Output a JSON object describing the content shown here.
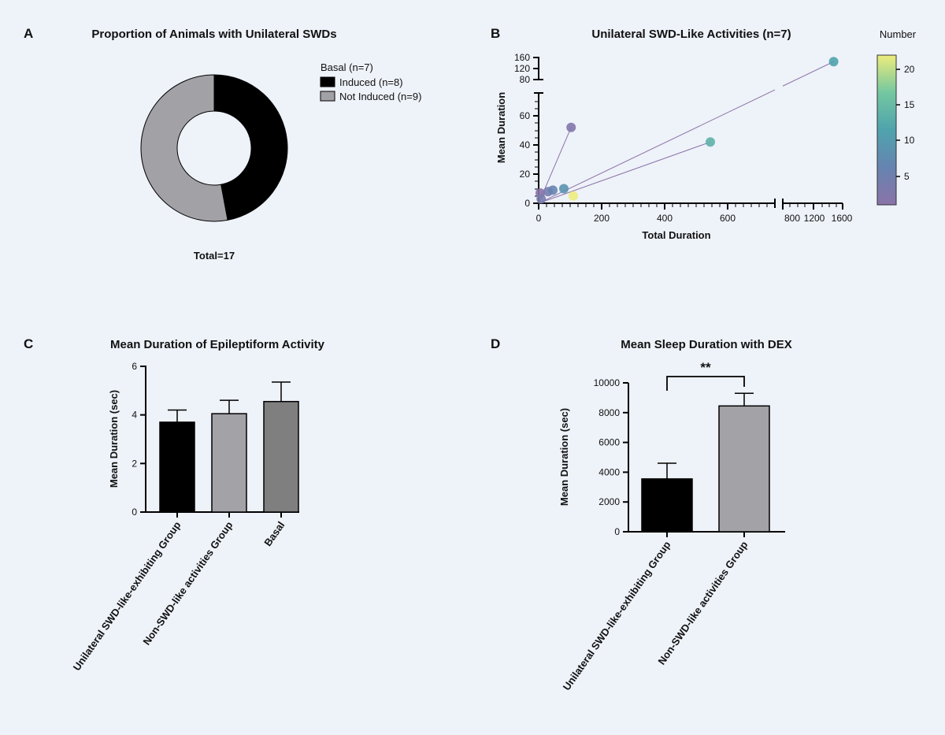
{
  "chart_data": [
    {
      "panel": "A",
      "type": "pie",
      "title": "Proportion of Animals with Unilateral SWDs",
      "legend": [
        "Basal (n=7)",
        "Induced (n=8)",
        "Not Induced (n=9)"
      ],
      "slices": [
        {
          "label": "Induced (n=8)",
          "value": 8,
          "color": "#000000"
        },
        {
          "label": "Not Induced (n=9)",
          "value": 9,
          "color": "#a2a2a6"
        }
      ],
      "note": "Total=17"
    },
    {
      "panel": "B",
      "type": "scatter",
      "title": "Unilateral SWD-Like Activities (n=7)",
      "xlabel": "Total Duration",
      "ylabel": "Mean Duration",
      "colorbar_label": "Number",
      "colorbar_ticks": [
        "20",
        "15",
        "10",
        "5"
      ],
      "colorbar_range": [
        1,
        22
      ],
      "x_ticks_main": [
        "0",
        "200",
        "400",
        "600"
      ],
      "x_ticks_broken": [
        "800",
        "1200",
        "1600"
      ],
      "y_ticks_main": [
        "0",
        "20",
        "40",
        "60"
      ],
      "y_ticks_broken": [
        "80",
        "120",
        "160"
      ],
      "points": [
        {
          "x": 5,
          "y": 7,
          "n": 1
        },
        {
          "x": 8,
          "y": 3,
          "n": 3
        },
        {
          "x": 30,
          "y": 8,
          "n": 3
        },
        {
          "x": 45,
          "y": 9,
          "n": 5
        },
        {
          "x": 80,
          "y": 10,
          "n": 8
        },
        {
          "x": 103,
          "y": 52,
          "n": 2
        },
        {
          "x": 110,
          "y": 5,
          "n": 22
        },
        {
          "x": 545,
          "y": 42,
          "n": 13
        },
        {
          "x": 1480,
          "y": 145,
          "n": 11
        }
      ]
    },
    {
      "panel": "C",
      "type": "bar",
      "title": "Mean Duration of Epileptiform Activity",
      "ylabel": "Mean Duration (sec)",
      "ylim": [
        0,
        6
      ],
      "y_ticks": [
        "0",
        "2",
        "4",
        "6"
      ],
      "categories": [
        "Unilateral SWD-like-exhibiting Group",
        "Non-SWD-like activities Group",
        "Basal"
      ],
      "values": [
        3.7,
        4.05,
        4.55
      ],
      "errors": [
        0.5,
        0.55,
        0.8
      ],
      "colors": [
        "#000000",
        "#a3a3a7",
        "#7f7f7f"
      ]
    },
    {
      "panel": "D",
      "type": "bar",
      "title": "Mean Sleep Duration with DEX",
      "ylabel": "Mean Duration (sec)",
      "ylim": [
        0,
        10000
      ],
      "y_ticks": [
        "0",
        "2000",
        "4000",
        "6000",
        "8000",
        "10000"
      ],
      "categories": [
        "Unilateral SWD-like-exhibiting Group",
        "Non-SWD-like activities Group"
      ],
      "values": [
        3550,
        8450
      ],
      "errors": [
        1050,
        850
      ],
      "colors": [
        "#000000",
        "#a3a3a7"
      ],
      "significance": "**"
    }
  ]
}
